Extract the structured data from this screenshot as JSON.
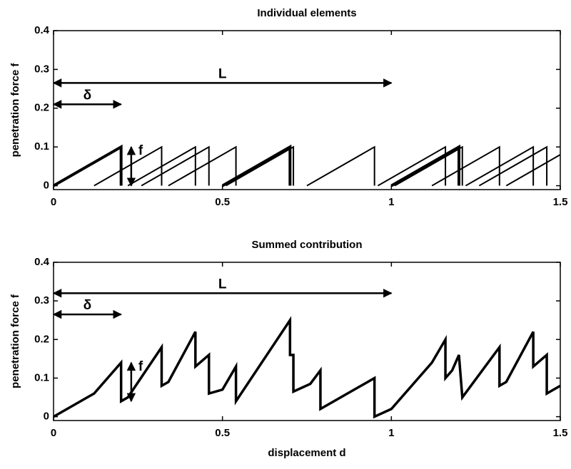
{
  "chart_data": [
    {
      "type": "line",
      "title": "Individual elements",
      "ylabel": "penetration force f",
      "xlim": [
        0,
        1.5
      ],
      "ylim": [
        -0.01,
        0.4
      ],
      "xticks": [
        0,
        0.5,
        1,
        1.5
      ],
      "yticks": [
        0,
        0.1,
        0.2,
        0.3,
        0.4
      ],
      "color": "#000000",
      "series": [
        {
          "x": [
            0,
            0.2,
            0.2
          ],
          "values": [
            0,
            0.1,
            0
          ],
          "linewidth": 4
        },
        {
          "x": [
            0.12,
            0.32,
            0.32
          ],
          "values": [
            0,
            0.1,
            0
          ],
          "linewidth": 2
        },
        {
          "x": [
            0.22,
            0.42,
            0.42
          ],
          "values": [
            0,
            0.1,
            0
          ],
          "linewidth": 2
        },
        {
          "x": [
            0.26,
            0.46,
            0.46
          ],
          "values": [
            0,
            0.1,
            0
          ],
          "linewidth": 2
        },
        {
          "x": [
            0.34,
            0.54,
            0.54
          ],
          "values": [
            0,
            0.1,
            0
          ],
          "linewidth": 2
        },
        {
          "x": [
            0.5,
            0.7,
            0.7
          ],
          "values": [
            0,
            0.1,
            0
          ],
          "linewidth": 4
        },
        {
          "x": [
            0.51,
            0.71,
            0.71
          ],
          "values": [
            0,
            0.1,
            0
          ],
          "linewidth": 2
        },
        {
          "x": [
            0.75,
            0.95,
            0.95
          ],
          "values": [
            0,
            0.1,
            0
          ],
          "linewidth": 2
        },
        {
          "x": [
            0.96,
            1.16,
            1.16
          ],
          "values": [
            0,
            0.1,
            0
          ],
          "linewidth": 2
        },
        {
          "x": [
            1.0,
            1.2,
            1.2
          ],
          "values": [
            0,
            0.1,
            0
          ],
          "linewidth": 4
        },
        {
          "x": [
            1.01,
            1.21,
            1.21
          ],
          "values": [
            0,
            0.1,
            0
          ],
          "linewidth": 2
        },
        {
          "x": [
            1.12,
            1.32,
            1.32
          ],
          "values": [
            0,
            0.1,
            0
          ],
          "linewidth": 2
        },
        {
          "x": [
            1.22,
            1.42,
            1.42
          ],
          "values": [
            0,
            0.1,
            0
          ],
          "linewidth": 2
        },
        {
          "x": [
            1.26,
            1.46,
            1.46
          ],
          "values": [
            0,
            0.1,
            0
          ],
          "linewidth": 2
        },
        {
          "x": [
            1.34,
            1.5
          ],
          "values": [
            0,
            0.08
          ],
          "linewidth": 2
        }
      ],
      "annotations": [
        {
          "text": "L",
          "x": [
            0,
            1
          ],
          "y": 0.265
        },
        {
          "text": "δ",
          "x": [
            0,
            0.2
          ],
          "y": 0.21
        },
        {
          "text": "f",
          "x": 0.23,
          "y": [
            0,
            0.1
          ]
        }
      ]
    },
    {
      "type": "line",
      "title": "Summed contribution",
      "ylabel": "penetration force f",
      "xlabel": "displacement d",
      "xlim": [
        0,
        1.5
      ],
      "ylim": [
        -0.01,
        0.4
      ],
      "xticks": [
        0,
        0.5,
        1,
        1.5
      ],
      "yticks": [
        0,
        0.1,
        0.2,
        0.3,
        0.4
      ],
      "color": "#000000",
      "series": [
        {
          "x": [
            0,
            0.12,
            0.2,
            0.2,
            0.22,
            0.32,
            0.32,
            0.34,
            0.42,
            0.42,
            0.46,
            0.46,
            0.5,
            0.54,
            0.54,
            0.7,
            0.7,
            0.71,
            0.71,
            0.76,
            0.79,
            0.79,
            0.95,
            0.95,
            1.0,
            1.12,
            1.16,
            1.16,
            1.18,
            1.2,
            1.21,
            1.32,
            1.32,
            1.34,
            1.42,
            1.42,
            1.46,
            1.46,
            1.5
          ],
          "values": [
            0,
            0.06,
            0.14,
            0.04,
            0.05,
            0.18,
            0.08,
            0.09,
            0.22,
            0.13,
            0.16,
            0.06,
            0.07,
            0.13,
            0.04,
            0.25,
            0.16,
            0.16,
            0.065,
            0.085,
            0.12,
            0.02,
            0.1,
            0,
            0.02,
            0.14,
            0.2,
            0.1,
            0.12,
            0.16,
            0.05,
            0.18,
            0.08,
            0.09,
            0.22,
            0.13,
            0.16,
            0.06,
            0.08
          ],
          "linewidth": 3.5
        }
      ],
      "annotations": [
        {
          "text": "L",
          "x": [
            0,
            1
          ],
          "y": 0.32
        },
        {
          "text": "δ",
          "x": [
            0,
            0.2
          ],
          "y": 0.265
        },
        {
          "text": "f",
          "x": 0.23,
          "y": [
            0.04,
            0.14
          ]
        }
      ]
    }
  ]
}
